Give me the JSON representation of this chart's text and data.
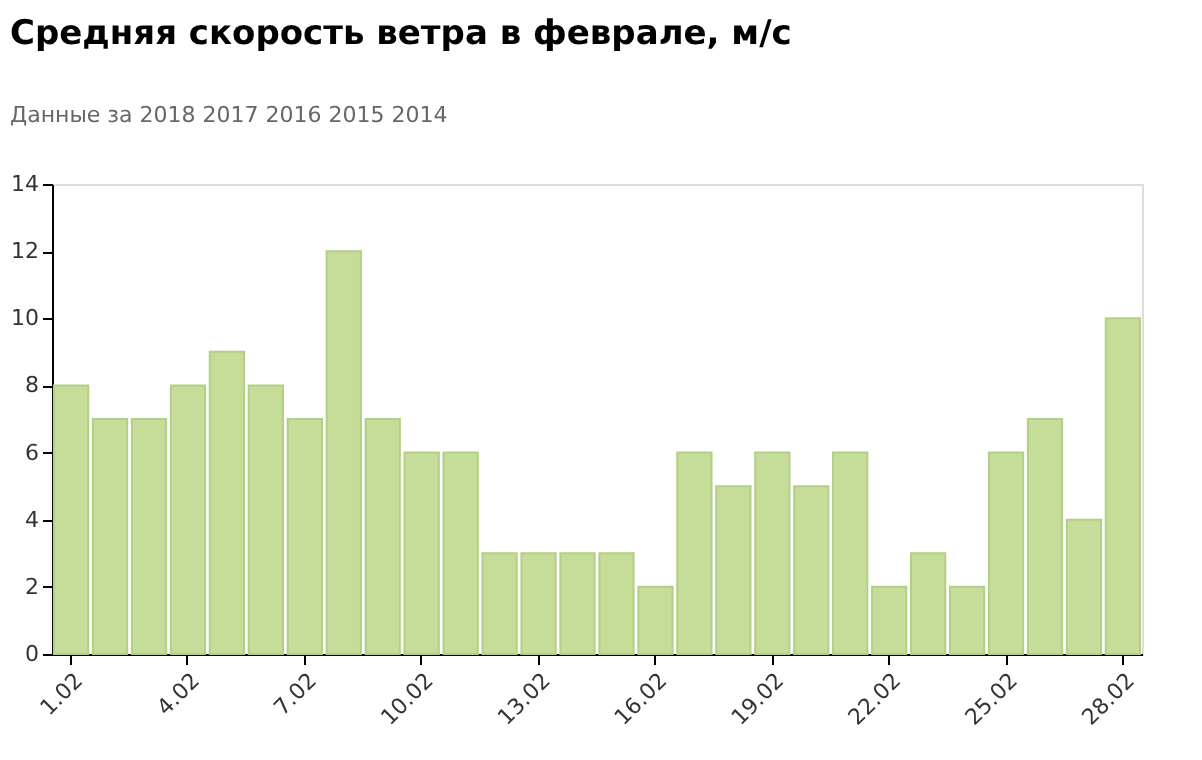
{
  "chart_data": {
    "type": "bar",
    "title": "Средняя скорость ветра в феврале, м/с",
    "subtitle": "Данные за 2018  2017  2016  2015  2014",
    "categories": [
      "1.02",
      null,
      null,
      "4.02",
      null,
      null,
      "7.02",
      null,
      null,
      "10.02",
      null,
      null,
      "13.02",
      null,
      null,
      "16.02",
      null,
      null,
      "19.02",
      null,
      null,
      "22.02",
      null,
      null,
      "25.02",
      null,
      null,
      "28.02"
    ],
    "values": [
      8,
      7,
      7,
      8,
      9,
      8,
      7,
      12,
      7,
      6,
      6,
      3,
      3,
      3,
      3,
      2,
      6,
      5,
      6,
      5,
      6,
      2,
      3,
      2,
      6,
      7,
      4,
      10
    ],
    "color": "#c5dd98",
    "ylim": [
      0,
      14
    ],
    "yticks": [
      0,
      2,
      4,
      6,
      8,
      10,
      12,
      14
    ],
    "grid": false
  }
}
